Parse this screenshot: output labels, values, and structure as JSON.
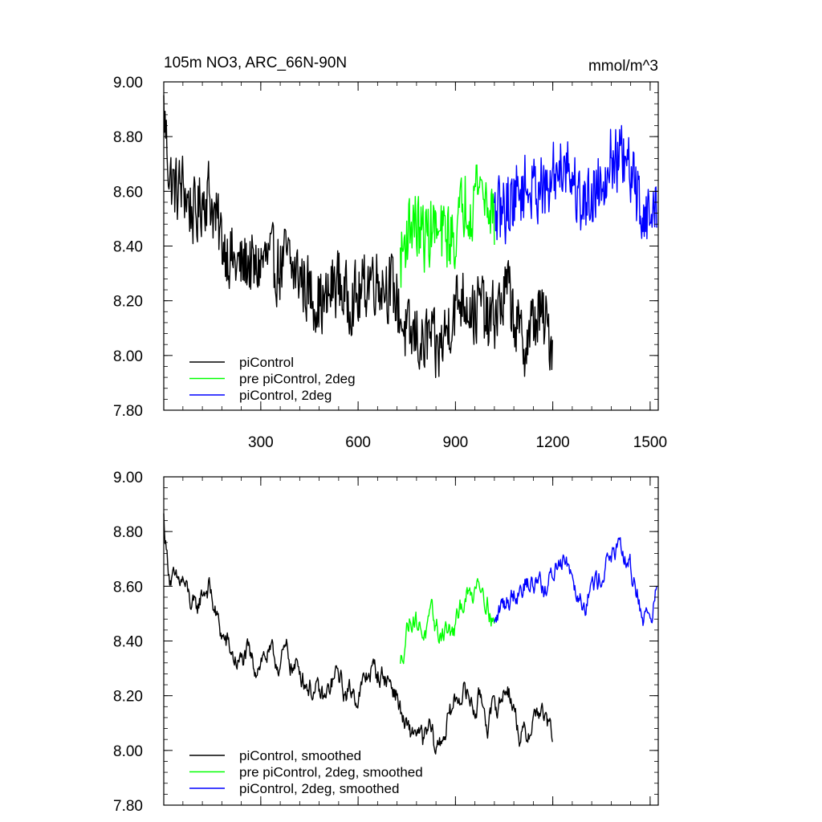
{
  "chart_data": [
    {
      "id": "top",
      "type": "line",
      "title": "105m NO3, ARC_66N-90N",
      "units": "mmol/m^3",
      "xlim": [
        1,
        1525
      ],
      "ylim": [
        7.8,
        9.0
      ],
      "xticks": [
        300,
        600,
        900,
        1200,
        1500
      ],
      "yticks": [
        7.8,
        8.0,
        8.2,
        8.4,
        8.6,
        8.8,
        9.0
      ],
      "ytick_labels": [
        "7.80",
        "8.00",
        "8.20",
        "8.40",
        "8.60",
        "8.80",
        "9.00"
      ],
      "xtick_labels": [
        "300",
        "600",
        "900",
        "1200",
        "1500"
      ],
      "legend_position": "bottom-left",
      "series": [
        {
          "name": "piControl",
          "color": "#000000",
          "x_range": [
            1,
            1200
          ],
          "anchor_x": [
            1,
            10,
            20,
            40,
            60,
            80,
            100,
            120,
            140,
            160,
            180,
            200,
            220,
            240,
            260,
            280,
            300,
            320,
            340,
            360,
            380,
            400,
            420,
            440,
            460,
            480,
            500,
            520,
            540,
            560,
            580,
            600,
            620,
            640,
            660,
            680,
            700,
            720,
            740,
            760,
            780,
            800,
            820,
            840,
            860,
            880,
            900,
            920,
            940,
            960,
            980,
            1000,
            1020,
            1040,
            1060,
            1080,
            1100,
            1120,
            1140,
            1160,
            1180,
            1200
          ],
          "anchor_y": [
            8.9,
            8.78,
            8.65,
            8.6,
            8.62,
            8.55,
            8.5,
            8.58,
            8.6,
            8.5,
            8.42,
            8.38,
            8.33,
            8.32,
            8.35,
            8.3,
            8.34,
            8.35,
            8.33,
            8.32,
            8.36,
            8.3,
            8.3,
            8.25,
            8.22,
            8.2,
            8.18,
            8.25,
            8.28,
            8.2,
            8.22,
            8.2,
            8.25,
            8.3,
            8.28,
            8.27,
            8.25,
            8.2,
            8.1,
            8.05,
            8.08,
            8.02,
            8.08,
            8.0,
            8.05,
            8.12,
            8.18,
            8.22,
            8.2,
            8.15,
            8.2,
            8.1,
            8.15,
            8.18,
            8.25,
            8.15,
            8.05,
            8.05,
            8.12,
            8.15,
            8.1,
            8.05
          ],
          "noise": 0.075
        },
        {
          "name": "pre piControl, 2deg",
          "color": "#00ff00",
          "x_range": [
            730,
            1020
          ],
          "anchor_x": [
            730,
            750,
            770,
            790,
            810,
            830,
            850,
            870,
            890,
            910,
            930,
            950,
            970,
            990,
            1010,
            1020
          ],
          "anchor_y": [
            8.34,
            8.45,
            8.5,
            8.45,
            8.43,
            8.48,
            8.42,
            8.45,
            8.42,
            8.48,
            8.58,
            8.55,
            8.65,
            8.58,
            8.55,
            8.5
          ],
          "noise": 0.075
        },
        {
          "name": "piControl, 2deg",
          "color": "#0000ff",
          "x_range": [
            1020,
            1520
          ],
          "anchor_x": [
            1020,
            1040,
            1060,
            1080,
            1100,
            1120,
            1140,
            1160,
            1180,
            1200,
            1220,
            1240,
            1260,
            1280,
            1300,
            1320,
            1340,
            1360,
            1380,
            1400,
            1420,
            1440,
            1460,
            1480,
            1500,
            1520
          ],
          "anchor_y": [
            8.5,
            8.52,
            8.55,
            8.58,
            8.6,
            8.62,
            8.6,
            8.64,
            8.57,
            8.65,
            8.7,
            8.72,
            8.65,
            8.58,
            8.55,
            8.6,
            8.62,
            8.68,
            8.72,
            8.72,
            8.7,
            8.66,
            8.58,
            8.52,
            8.5,
            8.55
          ],
          "noise": 0.075
        }
      ]
    },
    {
      "id": "bottom",
      "type": "line",
      "title": "",
      "units": "",
      "xlim": [
        1,
        1525
      ],
      "ylim": [
        7.8,
        9.0
      ],
      "xticks": [
        300,
        600,
        900,
        1200,
        1500
      ],
      "yticks": [
        7.8,
        8.0,
        8.2,
        8.4,
        8.6,
        8.8,
        9.0
      ],
      "ytick_labels": [
        "7.80",
        "8.00",
        "8.20",
        "8.40",
        "8.60",
        "8.80",
        "9.00"
      ],
      "legend_position": "bottom-left",
      "series": [
        {
          "name": "piControl, smoothed",
          "color": "#000000",
          "x_range": [
            1,
            1200
          ],
          "anchor_x": [
            1,
            10,
            20,
            40,
            60,
            80,
            100,
            120,
            140,
            160,
            180,
            200,
            220,
            240,
            260,
            280,
            300,
            320,
            340,
            360,
            380,
            400,
            420,
            440,
            460,
            480,
            500,
            520,
            540,
            560,
            580,
            600,
            620,
            640,
            660,
            680,
            700,
            720,
            740,
            760,
            780,
            800,
            820,
            840,
            860,
            880,
            900,
            920,
            940,
            960,
            980,
            1000,
            1020,
            1040,
            1060,
            1080,
            1100,
            1120,
            1140,
            1160,
            1180,
            1200
          ],
          "anchor_y": [
            8.85,
            8.72,
            8.64,
            8.6,
            8.62,
            8.55,
            8.5,
            8.58,
            8.6,
            8.5,
            8.42,
            8.38,
            8.33,
            8.32,
            8.35,
            8.3,
            8.34,
            8.35,
            8.33,
            8.32,
            8.36,
            8.3,
            8.3,
            8.25,
            8.22,
            8.2,
            8.18,
            8.25,
            8.28,
            8.2,
            8.22,
            8.2,
            8.25,
            8.3,
            8.28,
            8.27,
            8.25,
            8.2,
            8.1,
            8.05,
            8.08,
            8.02,
            8.08,
            8.0,
            8.05,
            8.12,
            8.18,
            8.22,
            8.2,
            8.15,
            8.2,
            8.1,
            8.15,
            8.18,
            8.25,
            8.15,
            8.05,
            8.05,
            8.12,
            8.15,
            8.1,
            8.05
          ],
          "noise": 0.045
        },
        {
          "name": "pre piControl, 2deg, smoothed",
          "color": "#00ff00",
          "x_range": [
            730,
            1020
          ],
          "anchor_x": [
            730,
            750,
            770,
            790,
            810,
            830,
            850,
            870,
            890,
            910,
            930,
            950,
            970,
            990,
            1010,
            1020
          ],
          "anchor_y": [
            8.3,
            8.45,
            8.5,
            8.45,
            8.43,
            8.48,
            8.42,
            8.45,
            8.42,
            8.48,
            8.58,
            8.55,
            8.65,
            8.58,
            8.5,
            8.46
          ],
          "noise": 0.045
        },
        {
          "name": "piControl, 2deg, smoothed",
          "color": "#0000ff",
          "x_range": [
            1020,
            1520
          ],
          "anchor_x": [
            1020,
            1040,
            1060,
            1080,
            1100,
            1120,
            1140,
            1160,
            1180,
            1200,
            1220,
            1240,
            1260,
            1280,
            1300,
            1320,
            1340,
            1360,
            1380,
            1400,
            1420,
            1440,
            1460,
            1480,
            1500,
            1520
          ],
          "anchor_y": [
            8.45,
            8.52,
            8.55,
            8.58,
            8.6,
            8.62,
            8.6,
            8.64,
            8.57,
            8.65,
            8.7,
            8.72,
            8.65,
            8.58,
            8.55,
            8.6,
            8.62,
            8.68,
            8.72,
            8.72,
            8.7,
            8.66,
            8.58,
            8.48,
            8.5,
            8.58
          ],
          "noise": 0.045
        }
      ]
    }
  ]
}
